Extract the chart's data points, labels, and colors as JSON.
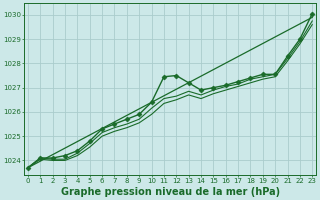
{
  "xlabel": "Graphe pression niveau de la mer (hPa)",
  "bg_color": "#cce8e8",
  "grid_color": "#aacccc",
  "line_color": "#1a6b2a",
  "xlim": [
    -0.3,
    23.3
  ],
  "ylim": [
    1023.4,
    1030.5
  ],
  "yticks": [
    1024,
    1025,
    1026,
    1027,
    1028,
    1029,
    1030
  ],
  "xticks": [
    0,
    1,
    2,
    3,
    4,
    5,
    6,
    7,
    8,
    9,
    10,
    11,
    12,
    13,
    14,
    15,
    16,
    17,
    18,
    19,
    20,
    21,
    22,
    23
  ],
  "series": [
    {
      "x": [
        0,
        1,
        2,
        3,
        4,
        5,
        6,
        7,
        8,
        9,
        10,
        11,
        12,
        13,
        14,
        15,
        16,
        17,
        18,
        19,
        20,
        21,
        22,
        23
      ],
      "y": [
        1023.7,
        1024.1,
        1024.1,
        1024.2,
        1024.4,
        1024.8,
        1025.3,
        1025.5,
        1025.7,
        1025.9,
        1026.4,
        1027.45,
        1027.5,
        1027.2,
        1026.9,
        1027.0,
        1027.1,
        1027.25,
        1027.4,
        1027.55,
        1027.55,
        1028.3,
        1029.0,
        1030.05
      ],
      "marker": "D",
      "markersize": 2.5,
      "lw": 1.0
    },
    {
      "x": [
        0,
        23
      ],
      "y": [
        1023.7,
        1029.9
      ],
      "marker": null,
      "markersize": 0,
      "lw": 0.9
    },
    {
      "x": [
        0,
        1,
        2,
        3,
        4,
        5,
        6,
        7,
        8,
        9,
        10,
        11,
        12,
        13,
        14,
        15,
        16,
        17,
        18,
        19,
        20,
        21,
        22,
        23
      ],
      "y": [
        1023.7,
        1024.05,
        1024.0,
        1024.0,
        1024.2,
        1024.55,
        1025.0,
        1025.2,
        1025.35,
        1025.55,
        1025.9,
        1026.35,
        1026.5,
        1026.7,
        1026.55,
        1026.75,
        1026.9,
        1027.05,
        1027.2,
        1027.35,
        1027.45,
        1028.1,
        1028.8,
        1029.6
      ],
      "marker": null,
      "markersize": 0,
      "lw": 0.8
    },
    {
      "x": [
        0,
        1,
        2,
        3,
        4,
        5,
        6,
        7,
        8,
        9,
        10,
        11,
        12,
        13,
        14,
        15,
        16,
        17,
        18,
        19,
        20,
        21,
        22,
        23
      ],
      "y": [
        1023.7,
        1024.1,
        1024.05,
        1024.05,
        1024.3,
        1024.7,
        1025.15,
        1025.35,
        1025.5,
        1025.7,
        1026.15,
        1026.55,
        1026.65,
        1026.85,
        1026.7,
        1026.9,
        1027.05,
        1027.15,
        1027.35,
        1027.45,
        1027.55,
        1028.2,
        1028.9,
        1029.75
      ],
      "marker": null,
      "markersize": 0,
      "lw": 0.8
    }
  ],
  "xlabel_fontsize": 7,
  "xlabel_color": "#1a6b2a",
  "tick_fontsize": 5,
  "tick_color": "#1a6b2a",
  "figsize": [
    3.2,
    2.0
  ],
  "dpi": 100
}
